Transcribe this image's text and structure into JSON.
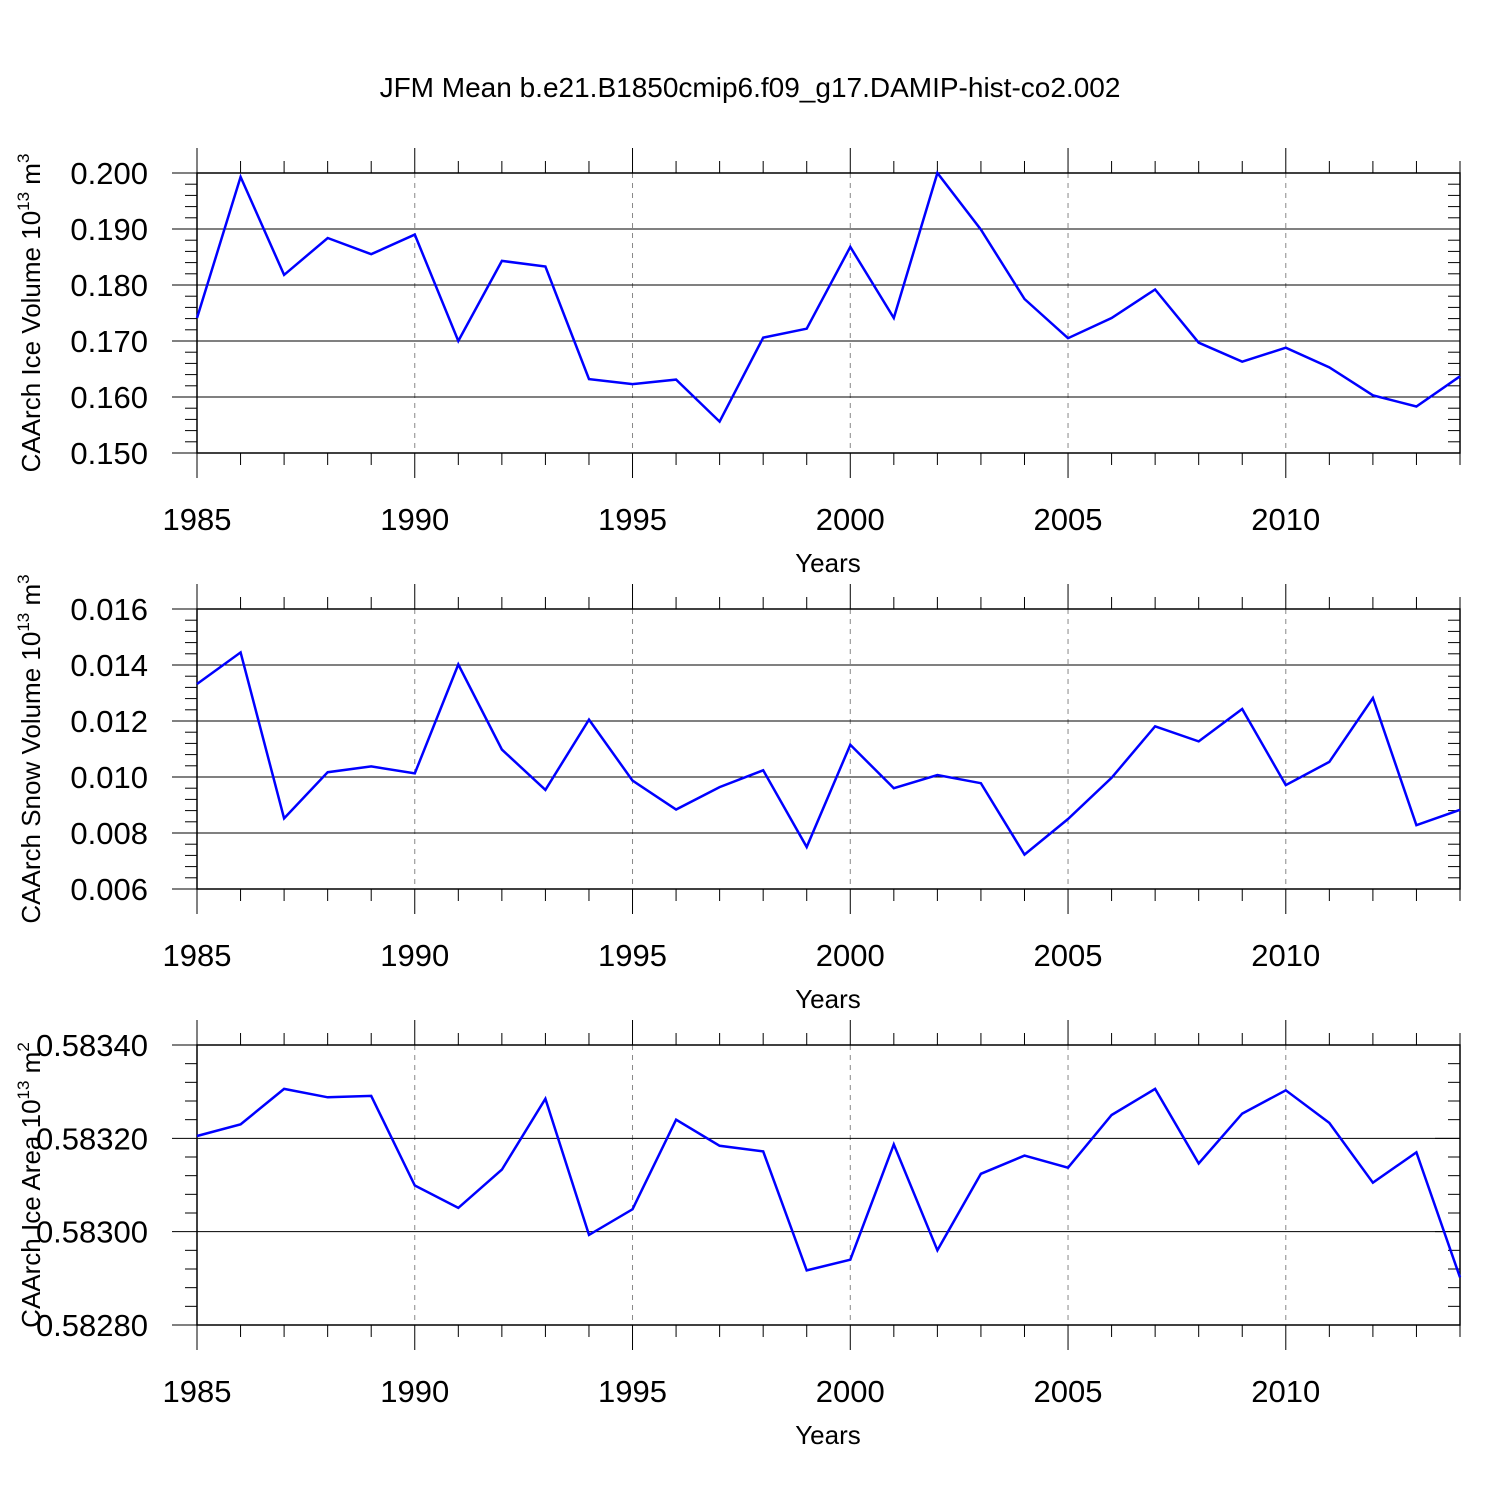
{
  "figure": {
    "title": "JFM Mean b.e21.B1850cmip6.f09_g17.DAMIP-hist-co2.002"
  },
  "chart_data": [
    {
      "type": "line",
      "ylabel": "CAArch Ice Volume 10",
      "ylabel_sup": "13",
      "ylabel_unit": " m",
      "ylabel_unit_sup": "3",
      "xlabel": "Years",
      "xlim": [
        1985,
        2014
      ],
      "ylim": [
        0.15,
        0.2
      ],
      "y_ticks": [
        "0.150",
        "0.160",
        "0.170",
        "0.180",
        "0.190",
        "0.200"
      ],
      "x_ticks": [
        "1985",
        "1990",
        "1995",
        "2000",
        "2005",
        "2010"
      ],
      "grid": "vertical dashed at major x ticks",
      "line_color": "#0000ff",
      "x": [
        1985,
        1986,
        1987,
        1988,
        1989,
        1990,
        1991,
        1992,
        1993,
        1994,
        1995,
        1996,
        1997,
        1998,
        1999,
        2000,
        2001,
        2002,
        2003,
        2004,
        2005,
        2006,
        2007,
        2008,
        2009,
        2010,
        2011,
        2012,
        2013,
        2014
      ],
      "values": [
        0.1741,
        0.1993,
        0.1818,
        0.1884,
        0.1855,
        0.189,
        0.17,
        0.1843,
        0.1833,
        0.1632,
        0.1623,
        0.1631,
        0.1556,
        0.1706,
        0.1722,
        0.1868,
        0.1741,
        0.2,
        0.1899,
        0.1775,
        0.1705,
        0.1741,
        0.1792,
        0.1697,
        0.1663,
        0.1688,
        0.1653,
        0.1603,
        0.1583,
        0.1637
      ]
    },
    {
      "type": "line",
      "ylabel": "CAArch Snow Volume 10",
      "ylabel_sup": "13",
      "ylabel_unit": " m",
      "ylabel_unit_sup": "3",
      "xlabel": "Years",
      "xlim": [
        1985,
        2014
      ],
      "ylim": [
        0.006,
        0.016
      ],
      "y_ticks": [
        "0.006",
        "0.008",
        "0.010",
        "0.012",
        "0.014",
        "0.016"
      ],
      "x_ticks": [
        "1985",
        "1990",
        "1995",
        "2000",
        "2005",
        "2010"
      ],
      "grid": "vertical dashed at major x ticks",
      "line_color": "#0000ff",
      "x": [
        1985,
        1986,
        1987,
        1988,
        1989,
        1990,
        1991,
        1992,
        1993,
        1994,
        1995,
        1996,
        1997,
        1998,
        1999,
        2000,
        2001,
        2002,
        2003,
        2004,
        2005,
        2006,
        2007,
        2008,
        2009,
        2010,
        2011,
        2012,
        2013,
        2014
      ],
      "values": [
        0.01332,
        0.01445,
        0.00852,
        0.01017,
        0.01038,
        0.01013,
        0.01402,
        0.01098,
        0.00954,
        0.01205,
        0.00987,
        0.00884,
        0.00964,
        0.01024,
        0.0075,
        0.01115,
        0.0096,
        0.01007,
        0.00978,
        0.00723,
        0.0085,
        0.00997,
        0.01181,
        0.01127,
        0.01243,
        0.00971,
        0.01054,
        0.01282,
        0.00828,
        0.00883
      ]
    },
    {
      "type": "line",
      "ylabel": "CAArch Ice Area 10",
      "ylabel_sup": "13",
      "ylabel_unit": " m",
      "ylabel_unit_sup": "2",
      "xlabel": "Years",
      "xlim": [
        1985,
        2014
      ],
      "ylim": [
        0.5828,
        0.5834
      ],
      "y_ticks": [
        "0.58280",
        "0.58300",
        "0.58320",
        "0.58340"
      ],
      "x_ticks": [
        "1985",
        "1990",
        "1995",
        "2000",
        "2005",
        "2010"
      ],
      "grid": "vertical dashed at major x ticks",
      "line_color": "#0000ff",
      "x": [
        1985,
        1986,
        1987,
        1988,
        1989,
        1990,
        1991,
        1992,
        1993,
        1994,
        1995,
        1996,
        1997,
        1998,
        1999,
        2000,
        2001,
        2002,
        2003,
        2004,
        2005,
        2006,
        2007,
        2008,
        2009,
        2010,
        2011,
        2012,
        2013,
        2014
      ],
      "values": [
        0.583205,
        0.58323,
        0.583306,
        0.583288,
        0.583291,
        0.583099,
        0.583051,
        0.583133,
        0.583285,
        0.582993,
        0.583048,
        0.58324,
        0.583184,
        0.583172,
        0.582917,
        0.58294,
        0.583187,
        0.58296,
        0.583124,
        0.583163,
        0.583137,
        0.58325,
        0.583306,
        0.583146,
        0.583253,
        0.583303,
        0.583233,
        0.583105,
        0.58317,
        0.582902
      ]
    }
  ]
}
